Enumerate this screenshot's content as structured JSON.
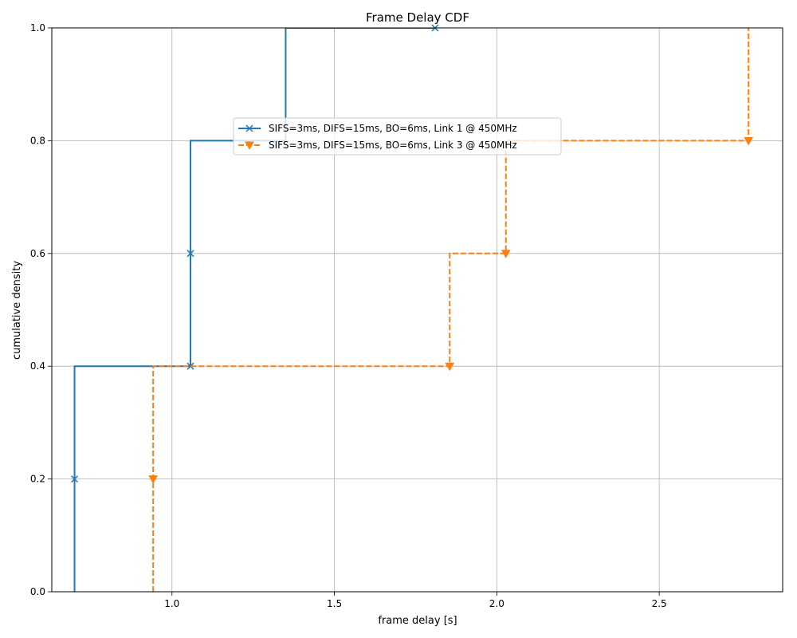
{
  "chart_data": {
    "type": "line",
    "title": "Frame Delay CDF",
    "xlabel": "frame delay [s]",
    "ylabel": "cumulative density",
    "xlim": [
      0.63,
      2.88
    ],
    "ylim": [
      0.0,
      1.0
    ],
    "x_ticks": [
      1.0,
      1.5,
      2.0,
      2.5
    ],
    "x_tick_labels": [
      "1.0",
      "1.5",
      "2.0",
      "2.5"
    ],
    "y_ticks": [
      0.0,
      0.2,
      0.4,
      0.6,
      0.8,
      1.0
    ],
    "y_tick_labels": [
      "0.0",
      "0.2",
      "0.4",
      "0.6",
      "0.8",
      "1.0"
    ],
    "grid": true,
    "legend_position": "upper-center",
    "series": [
      {
        "name": "SIFS=3ms, DIFS=15ms, BO=6ms, Link 1 @ 450MHz",
        "color": "#1f77b4",
        "line_style": "solid",
        "marker": "x",
        "step": "pre",
        "x": [
          0.7,
          0.7,
          1.057,
          1.057,
          1.35,
          1.81
        ],
        "y": [
          0.0,
          0.2,
          0.4,
          0.6,
          0.8,
          1.0
        ],
        "marker_x": [
          0.7,
          1.057,
          1.057,
          1.81
        ],
        "marker_y": [
          0.2,
          0.4,
          0.6,
          1.0
        ]
      },
      {
        "name": "SIFS=3ms, DIFS=15ms, BO=6ms, Link 3 @ 450MHz",
        "color": "#ff7f0e",
        "line_style": "dashed",
        "marker": "triangle-down",
        "step": "pre",
        "x": [
          0.942,
          0.942,
          1.855,
          2.028,
          2.775,
          2.775
        ],
        "y": [
          0.0,
          0.2,
          0.4,
          0.6,
          0.8,
          1.0
        ],
        "marker_x": [
          0.942,
          1.855,
          2.028,
          2.775
        ],
        "marker_y": [
          0.2,
          0.4,
          0.6,
          0.8
        ]
      }
    ]
  }
}
